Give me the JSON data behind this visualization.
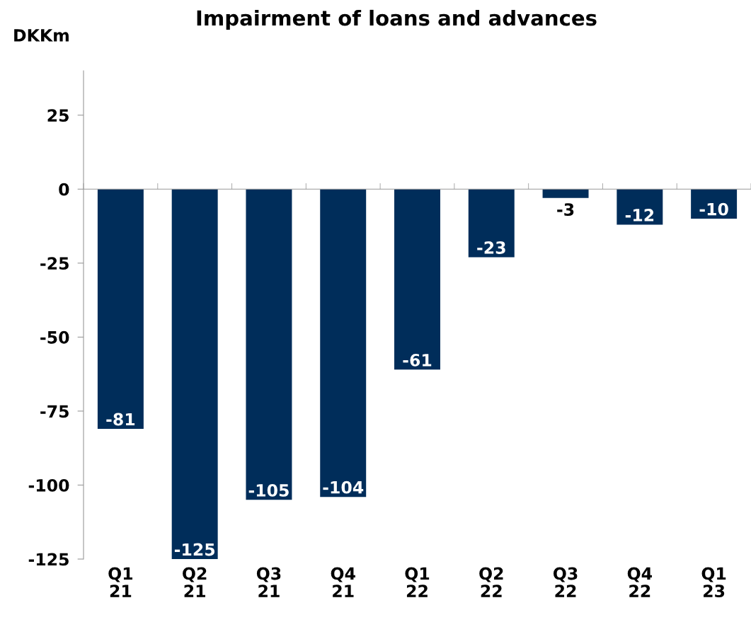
{
  "chart_data": {
    "type": "bar",
    "title": "Impairment of loans and advances",
    "ylabel": "DKKm",
    "categories": [
      "Q1\n21",
      "Q2\n21",
      "Q3\n21",
      "Q4\n21",
      "Q1\n22",
      "Q2\n22",
      "Q3\n22",
      "Q4\n22",
      "Q1\n23"
    ],
    "values": [
      -81,
      -125,
      -105,
      -104,
      -61,
      -23,
      -3,
      -12,
      -10
    ],
    "color": "#002d5a",
    "ylim": [
      -125,
      40
    ],
    "yticks": [
      25,
      0,
      -25,
      -50,
      -75,
      -100,
      -125
    ],
    "data_labels": true
  }
}
